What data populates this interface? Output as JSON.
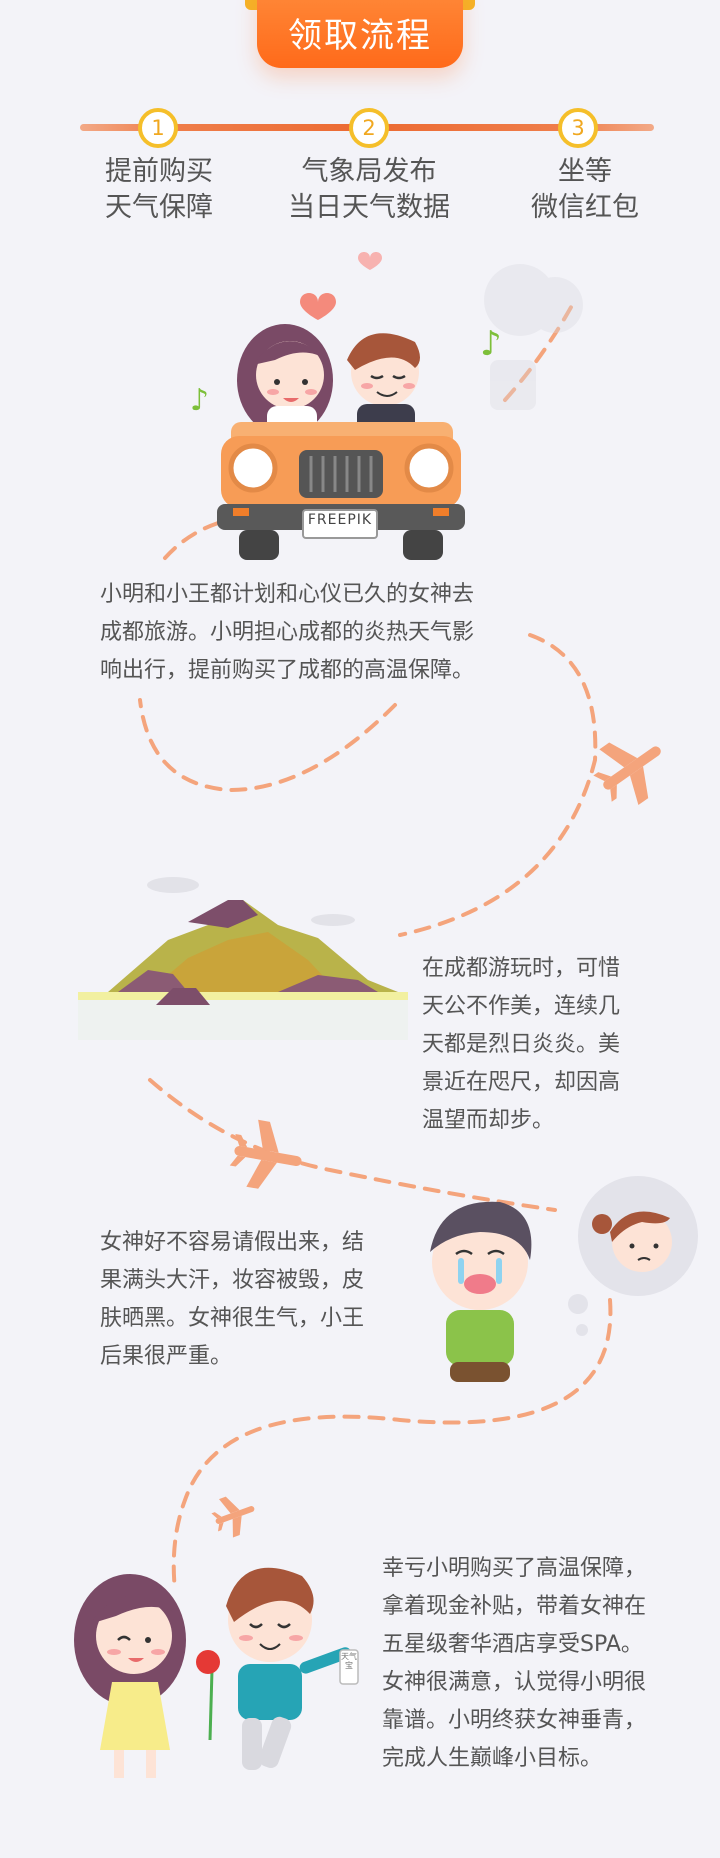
{
  "header": {
    "title": "领取流程"
  },
  "steps": [
    {
      "number": "1",
      "line1": "提前购买",
      "line2": "天气保障"
    },
    {
      "number": "2",
      "line1": "气象局发布",
      "line2": "当日天气数据"
    },
    {
      "number": "3",
      "line1": "坐等",
      "line2": "微信红包"
    }
  ],
  "car": {
    "plate": "FREEPIK"
  },
  "gift_label": "天气宝",
  "stories": [
    {
      "lines": [
        "小明和小王都计划和心仪已久的女神去",
        "成都旅游。小明担心成都的炎热天气影",
        "响出行，提前购买了成都的高温保障。"
      ]
    },
    {
      "lines": [
        "在成都游玩时，可惜",
        "天公不作美，连续几",
        "天都是烈日炎炎。美",
        "景近在咫尺，却因高",
        "温望而却步。"
      ]
    },
    {
      "lines": [
        "女神好不容易请假出来，结",
        "果满头大汗，妆容被毁，皮",
        "肤晒黑。女神很生气，小王",
        "后果很严重。"
      ]
    },
    {
      "lines": [
        "幸亏小明购买了高温保障，",
        "拿着现金补贴，带着女神在",
        "五星级奢华酒店享受SPA。",
        "女神很满意，认觉得小明很",
        "靠谱。小明终获女神垂青，",
        "完成人生巅峰小目标。"
      ]
    }
  ],
  "colors": {
    "accent": "#ff6a1a",
    "step_ring": "#f5bf2a",
    "dash": "#f4a47c",
    "text": "#555555",
    "background": "#f3f3f8"
  }
}
